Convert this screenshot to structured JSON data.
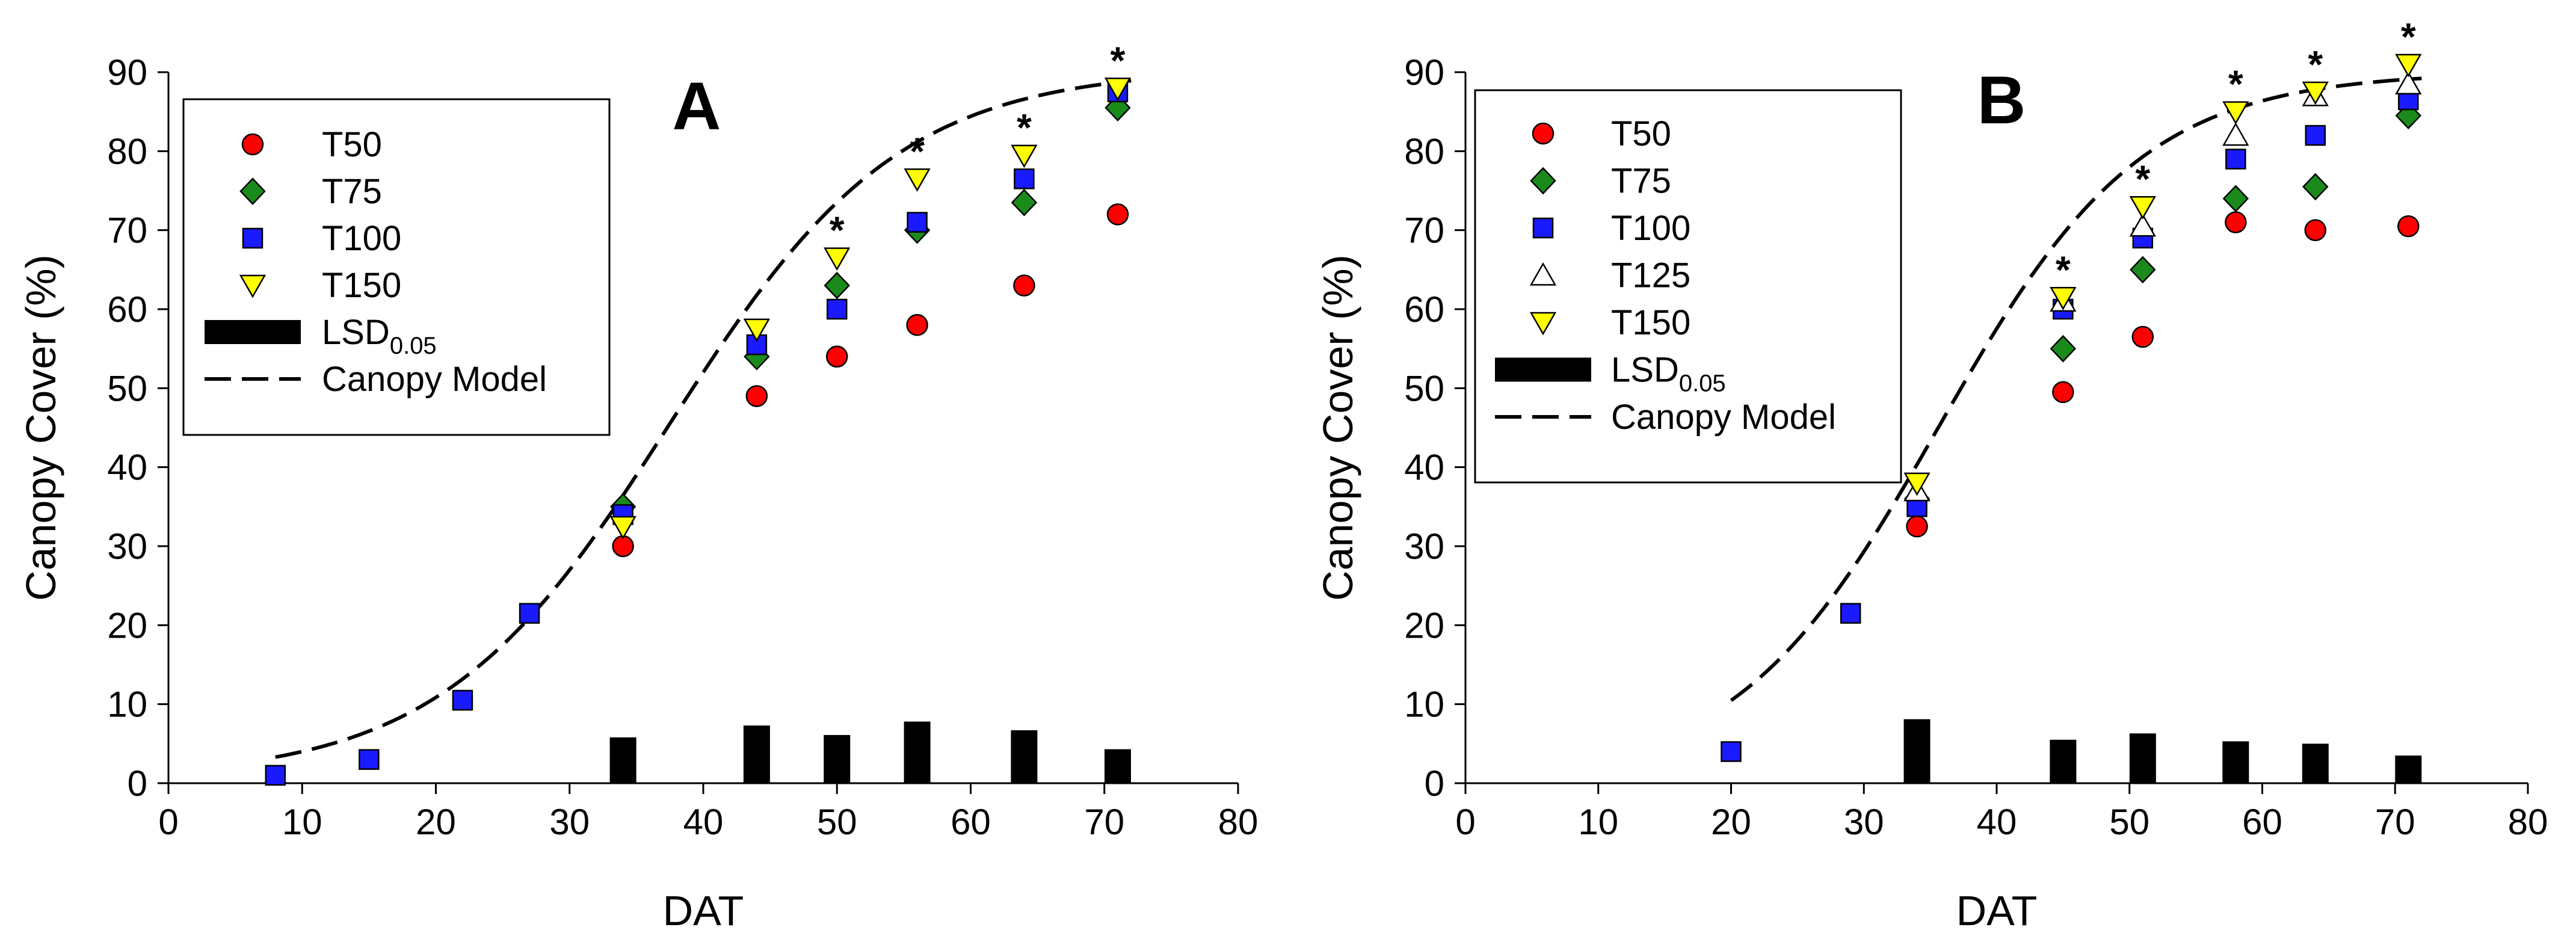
{
  "chart_data": [
    {
      "type": "scatter",
      "panel_label": "A",
      "xlabel": "DAT",
      "ylabel": "Canopy Cover (%)",
      "xlim": [
        0,
        80
      ],
      "ylim": [
        0,
        90
      ],
      "xticks": [
        0,
        10,
        20,
        30,
        40,
        50,
        60,
        70,
        80
      ],
      "yticks": [
        0,
        10,
        20,
        30,
        40,
        50,
        60,
        70,
        80,
        90
      ],
      "legend_position": "top-left",
      "colors": {
        "T50": "#ff0000",
        "T75": "#1a8a1a",
        "T100": "#1a1aff",
        "T125": "#ffffff",
        "T150": "#ffff00",
        "lsd": "#000000",
        "model": "#000000"
      },
      "legend": [
        {
          "key": "T50",
          "label": "T50",
          "kind": "circle"
        },
        {
          "key": "T75",
          "label": "T75",
          "kind": "diamond"
        },
        {
          "key": "T100",
          "label": "T100",
          "kind": "square"
        },
        {
          "key": "T150",
          "label": "T150",
          "kind": "tri-down"
        },
        {
          "key": "lsd",
          "label": "LSD",
          "sub": "0.05",
          "kind": "bar"
        },
        {
          "key": "model",
          "label": "Canopy Model",
          "kind": "dash"
        }
      ],
      "series": [
        {
          "name": "T50",
          "points": [
            [
              34,
              30
            ],
            [
              44,
              49
            ],
            [
              50,
              54
            ],
            [
              56,
              58
            ],
            [
              64,
              63
            ],
            [
              71,
              72
            ]
          ]
        },
        {
          "name": "T75",
          "points": [
            [
              34,
              35
            ],
            [
              44,
              54
            ],
            [
              50,
              63
            ],
            [
              56,
              70
            ],
            [
              64,
              73.5
            ],
            [
              71,
              85.5
            ]
          ]
        },
        {
          "name": "T100",
          "points": [
            [
              8,
              1
            ],
            [
              15,
              3
            ],
            [
              22,
              10.5
            ],
            [
              27,
              21.5
            ],
            [
              34,
              34
            ],
            [
              44,
              55.5
            ],
            [
              50,
              60
            ],
            [
              56,
              71
            ],
            [
              64,
              76.5
            ],
            [
              71,
              87.5
            ]
          ]
        },
        {
          "name": "T150",
          "points": [
            [
              34,
              32.5
            ],
            [
              44,
              57.5
            ],
            [
              50,
              66.5
            ],
            [
              56,
              76.5
            ],
            [
              64,
              79.5
            ],
            [
              71,
              88
            ]
          ]
        }
      ],
      "lsd_bars": [
        [
          34,
          5.8
        ],
        [
          44,
          7.3
        ],
        [
          50,
          6.1
        ],
        [
          56,
          7.8
        ],
        [
          64,
          6.7
        ],
        [
          71,
          4.3
        ]
      ],
      "significance_marks": [
        {
          "x": 50,
          "y": 66.5,
          "label": "*"
        },
        {
          "x": 56,
          "y": 76.5,
          "label": "*"
        },
        {
          "x": 64,
          "y": 79.5,
          "label": "*"
        },
        {
          "x": 71,
          "y": 88,
          "label": "*"
        }
      ],
      "model_curve": {
        "xmin": 8,
        "xmax": 72,
        "Ymax": 90.5,
        "k": 0.1166,
        "x0": 37.5,
        "Ymin": 0.5
      }
    },
    {
      "type": "scatter",
      "panel_label": "B",
      "xlabel": "DAT",
      "ylabel": "Canopy Cover (%)",
      "xlim": [
        0,
        80
      ],
      "ylim": [
        0,
        90
      ],
      "xticks": [
        0,
        10,
        20,
        30,
        40,
        50,
        60,
        70,
        80
      ],
      "yticks": [
        0,
        10,
        20,
        30,
        40,
        50,
        60,
        70,
        80,
        90
      ],
      "legend_position": "top-left",
      "colors": {
        "T50": "#ff0000",
        "T75": "#1a8a1a",
        "T100": "#1a1aff",
        "T125": "#ffffff",
        "T150": "#ffff00",
        "lsd": "#000000",
        "model": "#000000"
      },
      "legend": [
        {
          "key": "T50",
          "label": "T50",
          "kind": "circle"
        },
        {
          "key": "T75",
          "label": "T75",
          "kind": "diamond"
        },
        {
          "key": "T100",
          "label": "T100",
          "kind": "square"
        },
        {
          "key": "T125",
          "label": "T125",
          "kind": "tri-up"
        },
        {
          "key": "T150",
          "label": "T150",
          "kind": "tri-down"
        },
        {
          "key": "lsd",
          "label": "LSD",
          "sub": "0.05",
          "kind": "bar"
        },
        {
          "key": "model",
          "label": "Canopy Model",
          "kind": "dash"
        }
      ],
      "series": [
        {
          "name": "T50",
          "points": [
            [
              34,
              32.5
            ],
            [
              45,
              49.5
            ],
            [
              51,
              56.5
            ],
            [
              58,
              71
            ],
            [
              64,
              70
            ],
            [
              71,
              70.5
            ]
          ]
        },
        {
          "name": "T75",
          "points": [
            [
              34,
              36
            ],
            [
              45,
              55
            ],
            [
              51,
              65
            ],
            [
              58,
              74
            ],
            [
              64,
              75.5
            ],
            [
              71,
              84.5
            ]
          ]
        },
        {
          "name": "T100",
          "points": [
            [
              20,
              4
            ],
            [
              29,
              21.5
            ],
            [
              34,
              35
            ],
            [
              45,
              60
            ],
            [
              51,
              69
            ],
            [
              58,
              79
            ],
            [
              64,
              82
            ],
            [
              71,
              86.5
            ]
          ]
        },
        {
          "name": "T125",
          "points": [
            [
              34,
              37
            ],
            [
              45,
              61
            ],
            [
              51,
              70.5
            ],
            [
              58,
              82
            ],
            [
              64,
              87
            ],
            [
              71,
              88.5
            ]
          ]
        },
        {
          "name": "T150",
          "points": [
            [
              34,
              38
            ],
            [
              45,
              61.5
            ],
            [
              51,
              73
            ],
            [
              58,
              85
            ],
            [
              64,
              87.5
            ],
            [
              71,
              91
            ]
          ]
        }
      ],
      "lsd_bars": [
        [
          34,
          8.1
        ],
        [
          45,
          5.5
        ],
        [
          51,
          6.3
        ],
        [
          58,
          5.3
        ],
        [
          64,
          5
        ],
        [
          71,
          3.5
        ]
      ],
      "significance_marks": [
        {
          "x": 45,
          "y": 61.5,
          "label": "*"
        },
        {
          "x": 51,
          "y": 73,
          "label": "*"
        },
        {
          "x": 58,
          "y": 85,
          "label": "*"
        },
        {
          "x": 64,
          "y": 87.5,
          "label": "*"
        },
        {
          "x": 71,
          "y": 91,
          "label": "*"
        }
      ],
      "model_curve": {
        "xmin": 20,
        "xmax": 72,
        "Ymax": 90,
        "k": 0.13,
        "x0": 35.6,
        "Ymin": 0
      }
    }
  ]
}
